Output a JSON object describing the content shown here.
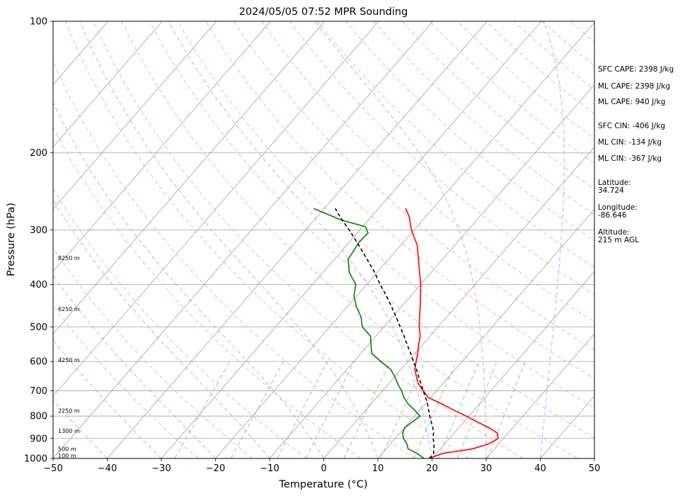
{
  "chart_data": {
    "type": "line",
    "title": "2024/05/05 07:52 MPR Sounding",
    "xlabel": "Temperature (°C)",
    "ylabel": "Pressure (hPa)",
    "xlim": [
      -50,
      50
    ],
    "ylim": [
      1000,
      100
    ],
    "y_scale": "log",
    "skew": true,
    "x_ticks": [
      "−50",
      "−40",
      "−30",
      "−20",
      "−10",
      "0",
      "10",
      "20",
      "30",
      "40",
      "50"
    ],
    "x_tick_values": [
      -50,
      -40,
      -30,
      -20,
      -10,
      0,
      10,
      20,
      30,
      40,
      50
    ],
    "y_ticks": [
      "100",
      "200",
      "300",
      "400",
      "500",
      "600",
      "700",
      "800",
      "900",
      "1000"
    ],
    "y_tick_values": [
      100,
      200,
      300,
      400,
      500,
      600,
      700,
      800,
      900,
      1000
    ],
    "height_labels": [
      {
        "text": "100 m",
        "p": 985
      },
      {
        "text": "500 m",
        "p": 950
      },
      {
        "text": "1300 m",
        "p": 865
      },
      {
        "text": "2250 m",
        "p": 778
      },
      {
        "text": "4250 m",
        "p": 595
      },
      {
        "text": "6250 m",
        "p": 455
      },
      {
        "text": "8250 m",
        "p": 348
      }
    ],
    "series": [
      {
        "color": "#ff0000",
        "style": "solid",
        "points": [
          [
            1000,
            19.5
          ],
          [
            975,
            21
          ],
          [
            950,
            26
          ],
          [
            925,
            28.2
          ],
          [
            900,
            29
          ],
          [
            875,
            28
          ],
          [
            850,
            25.5
          ],
          [
            825,
            22.5
          ],
          [
            800,
            19.5
          ],
          [
            775,
            16.2
          ],
          [
            750,
            13
          ],
          [
            725,
            9.5
          ],
          [
            700,
            7.5
          ],
          [
            675,
            5.5
          ],
          [
            650,
            4
          ],
          [
            625,
            2.5
          ],
          [
            600,
            1.5
          ],
          [
            575,
            0.5
          ],
          [
            550,
            -0.7
          ],
          [
            525,
            -1.8
          ],
          [
            500,
            -3.5
          ],
          [
            475,
            -5
          ],
          [
            450,
            -6.5
          ],
          [
            425,
            -8.2
          ],
          [
            400,
            -10
          ],
          [
            375,
            -12.2
          ],
          [
            350,
            -14.5
          ],
          [
            325,
            -17
          ],
          [
            300,
            -20.5
          ],
          [
            280,
            -23
          ],
          [
            268,
            -25
          ]
        ]
      },
      {
        "color": "#008000",
        "style": "solid",
        "points": [
          [
            1000,
            18.5
          ],
          [
            975,
            16.5
          ],
          [
            950,
            14
          ],
          [
            925,
            13
          ],
          [
            900,
            11.5
          ],
          [
            875,
            10.5
          ],
          [
            850,
            10
          ],
          [
            825,
            10.5
          ],
          [
            800,
            11
          ],
          [
            775,
            9
          ],
          [
            750,
            6.8
          ],
          [
            725,
            5
          ],
          [
            700,
            3.5
          ],
          [
            675,
            1.7
          ],
          [
            650,
            0
          ],
          [
            625,
            -2
          ],
          [
            600,
            -5
          ],
          [
            575,
            -8
          ],
          [
            550,
            -9.5
          ],
          [
            525,
            -11
          ],
          [
            500,
            -14
          ],
          [
            475,
            -15.8
          ],
          [
            450,
            -18.3
          ],
          [
            425,
            -20.5
          ],
          [
            400,
            -22
          ],
          [
            375,
            -25.2
          ],
          [
            350,
            -27.5
          ],
          [
            335,
            -27.8
          ],
          [
            320,
            -28.2
          ],
          [
            305,
            -28
          ],
          [
            295,
            -29.5
          ],
          [
            285,
            -35
          ],
          [
            268,
            -42
          ]
        ]
      },
      {
        "color": "#000000",
        "style": "dashed",
        "points": [
          [
            1000,
            19.5
          ],
          [
            975,
            19.5
          ],
          [
            950,
            18.8
          ],
          [
            925,
            18
          ],
          [
            900,
            17
          ],
          [
            875,
            16.2
          ],
          [
            850,
            15.2
          ],
          [
            825,
            14
          ],
          [
            800,
            12.8
          ],
          [
            775,
            11.6
          ],
          [
            750,
            10.4
          ],
          [
            725,
            9
          ],
          [
            700,
            7.5
          ],
          [
            675,
            6
          ],
          [
            650,
            4.4
          ],
          [
            625,
            2.8
          ],
          [
            600,
            1
          ],
          [
            575,
            -0.8
          ],
          [
            550,
            -2.8
          ],
          [
            525,
            -4.8
          ],
          [
            500,
            -7
          ],
          [
            475,
            -9.3
          ],
          [
            450,
            -11.8
          ],
          [
            425,
            -14.5
          ],
          [
            400,
            -17.5
          ],
          [
            375,
            -20.5
          ],
          [
            350,
            -24
          ],
          [
            325,
            -27.8
          ],
          [
            300,
            -32
          ],
          [
            280,
            -35.8
          ],
          [
            268,
            -38
          ]
        ]
      }
    ],
    "grid": true
  },
  "side_labels": [
    "SFC CAPE: 2398 J/kg",
    "ML CAPE: 2398 J/kg",
    "ML CAPE: 940 J/kg",
    "SFC CIN: -406 J/kg",
    "ML CIN: -134 J/kg",
    "ML CIN: -367 J/kg",
    "Latitude:\n34.724",
    "Longitude:\n-86.646",
    "Altitude:\n215 m AGL"
  ],
  "colors": {
    "temperature": "#ff0000",
    "dewpoint": "#008000",
    "parcel": "#000000",
    "dry_adiabat": "#ff9999",
    "moist_adiabat": "#9999ff",
    "mixing_ratio": "#7fbf7f",
    "isotherm": "#a0a0a0"
  }
}
